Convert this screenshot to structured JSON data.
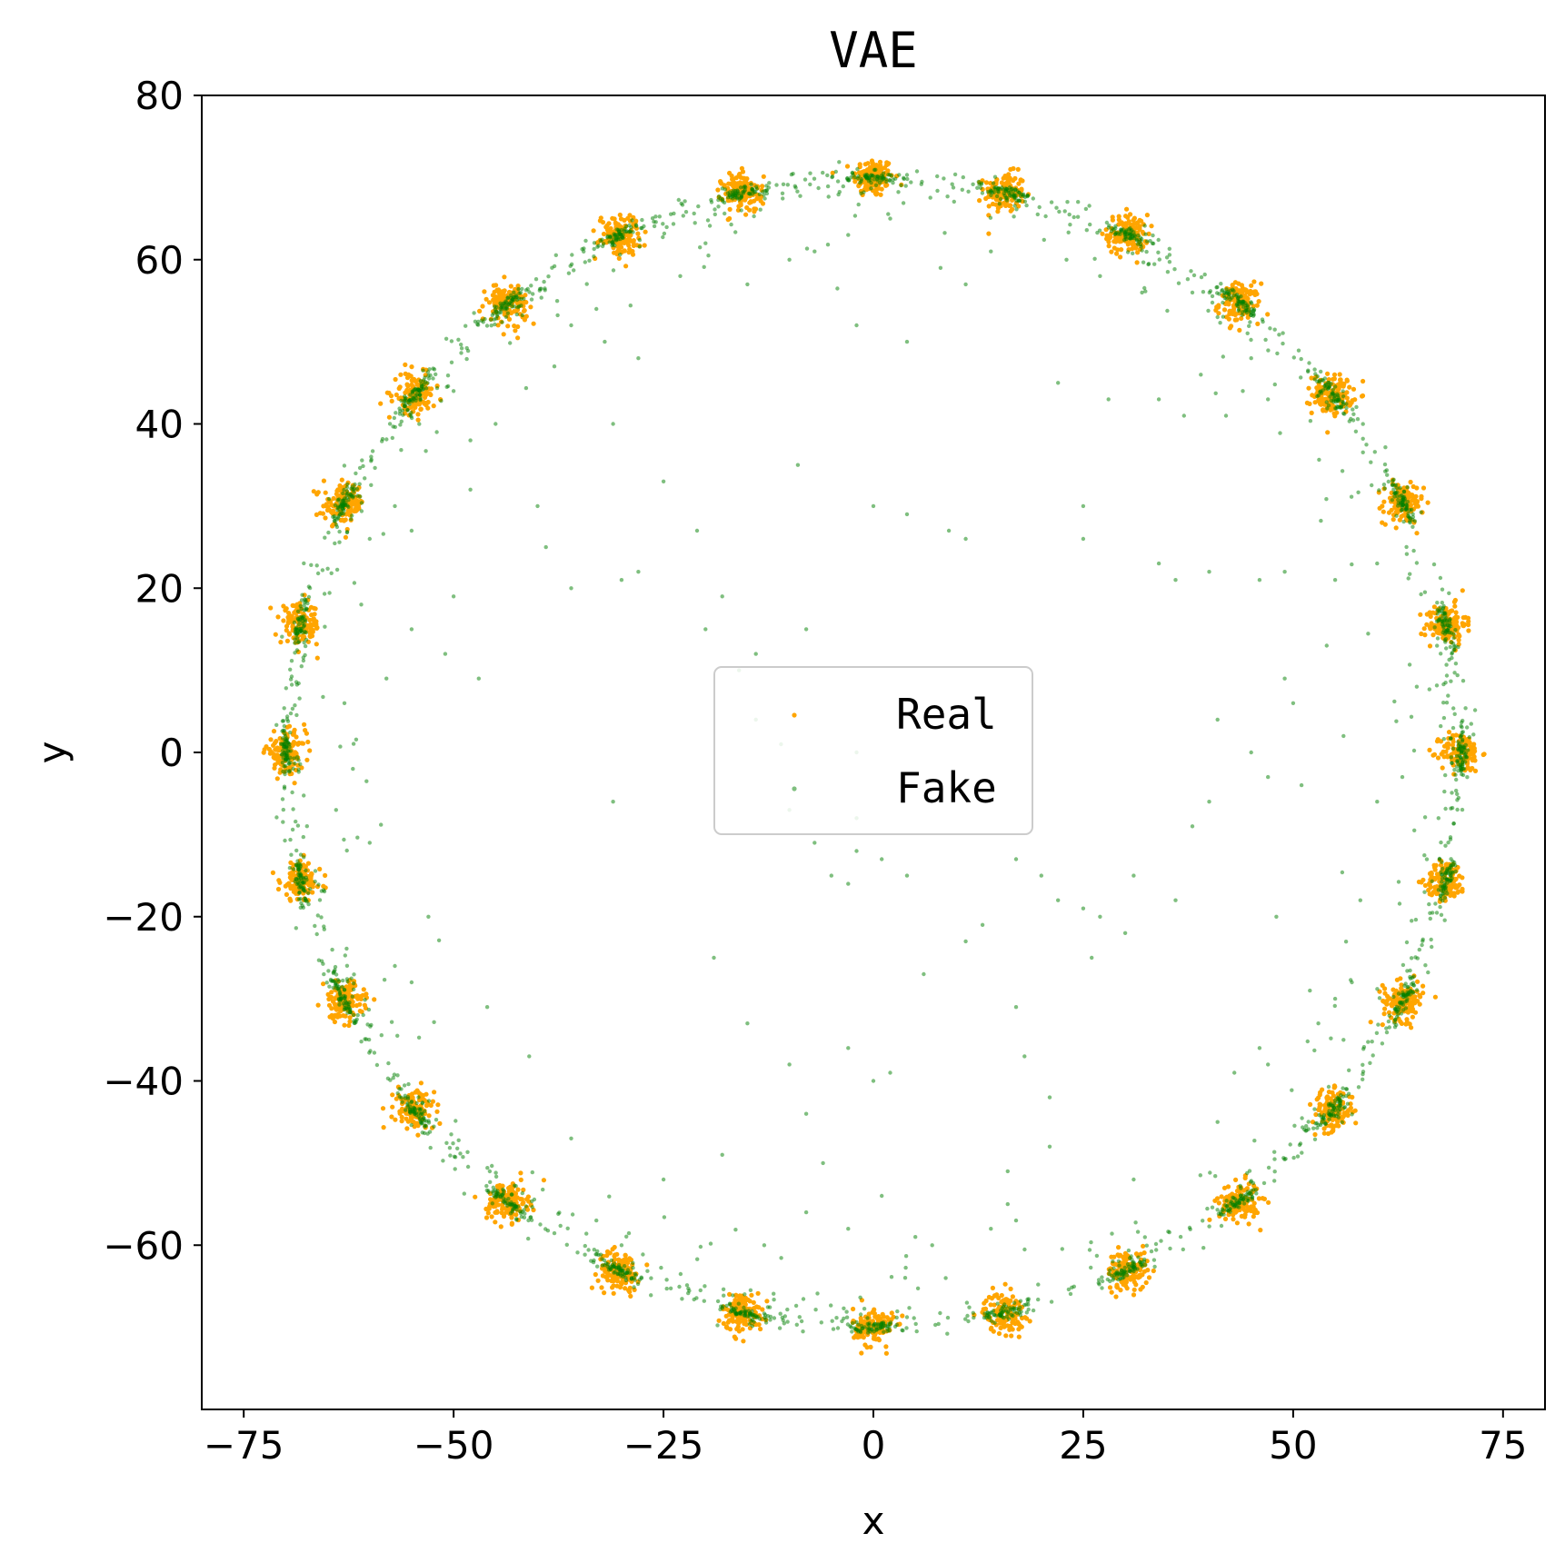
{
  "chart_data": {
    "type": "scatter",
    "title": "VAE",
    "xlabel": "x",
    "ylabel": "y",
    "xlim": [
      -80,
      80
    ],
    "ylim": [
      -80,
      80
    ],
    "xticks": [
      -75,
      -50,
      -25,
      0,
      25,
      50,
      75
    ],
    "xtick_labels": [
      "−75",
      "−50",
      "−25",
      "0",
      "25",
      "50",
      "75"
    ],
    "yticks": [
      -60,
      -40,
      -20,
      0,
      20,
      40,
      60,
      80
    ],
    "ytick_labels": [
      "−60",
      "−40",
      "−20",
      "0",
      "20",
      "40",
      "60",
      "80"
    ],
    "grid": false,
    "legend": {
      "placement": "center"
    },
    "series": [
      {
        "name": "Real",
        "color": "#ffa500",
        "clusters": [
          {
            "x": 0.0,
            "y": 70.0
          },
          {
            "x": 15.6,
            "y": 68.2
          },
          {
            "x": 30.3,
            "y": 63.1
          },
          {
            "x": 43.6,
            "y": 54.7
          },
          {
            "x": 54.7,
            "y": 43.6
          },
          {
            "x": 63.1,
            "y": 30.3
          },
          {
            "x": 68.2,
            "y": 15.6
          },
          {
            "x": 70.0,
            "y": 0.0
          },
          {
            "x": 68.2,
            "y": -15.6
          },
          {
            "x": 63.1,
            "y": -30.3
          },
          {
            "x": 54.7,
            "y": -43.6
          },
          {
            "x": 43.6,
            "y": -54.7
          },
          {
            "x": 30.3,
            "y": -63.1
          },
          {
            "x": 15.6,
            "y": -68.2
          },
          {
            "x": 0.0,
            "y": -70.0
          },
          {
            "x": -15.6,
            "y": -68.2
          },
          {
            "x": -30.3,
            "y": -63.1
          },
          {
            "x": -43.6,
            "y": -54.7
          },
          {
            "x": -54.7,
            "y": -43.6
          },
          {
            "x": -63.1,
            "y": -30.3
          },
          {
            "x": -68.2,
            "y": -15.6
          },
          {
            "x": -70.0,
            "y": 0.0
          },
          {
            "x": -68.2,
            "y": 15.6
          },
          {
            "x": -63.1,
            "y": 30.3
          },
          {
            "x": -54.7,
            "y": 43.6
          },
          {
            "x": -43.6,
            "y": 54.7
          },
          {
            "x": -30.3,
            "y": 63.1
          },
          {
            "x": -15.6,
            "y": 68.2
          }
        ],
        "cluster_std": 1.2
      },
      {
        "name": "Fake",
        "color": "#008000",
        "ring_radius": 69.5,
        "scattered_points": [
          [
            -2,
            52
          ],
          [
            4,
            50
          ],
          [
            -10,
            60
          ],
          [
            -15,
            57
          ],
          [
            -23,
            58
          ],
          [
            -28,
            48
          ],
          [
            -32,
            50
          ],
          [
            -42,
            56
          ],
          [
            -38,
            47
          ],
          [
            -45,
            40
          ],
          [
            -50,
            44
          ],
          [
            -48,
            32
          ],
          [
            -40,
            30
          ],
          [
            -39,
            25
          ],
          [
            -31,
            40
          ],
          [
            -25,
            33
          ],
          [
            -21,
            27
          ],
          [
            -30,
            21
          ],
          [
            -36,
            20
          ],
          [
            -50,
            19
          ],
          [
            -55,
            15
          ],
          [
            -58,
            9
          ],
          [
            -51,
            12
          ],
          [
            -47,
            9
          ],
          [
            -9,
            35
          ],
          [
            0,
            30
          ],
          [
            4,
            29
          ],
          [
            9,
            27
          ],
          [
            11,
            26
          ],
          [
            25,
            30
          ],
          [
            25,
            26
          ],
          [
            34,
            23
          ],
          [
            36,
            21
          ],
          [
            40,
            22
          ],
          [
            46,
            21
          ],
          [
            49,
            22
          ],
          [
            60,
            23
          ],
          [
            55,
            21
          ],
          [
            49,
            9
          ],
          [
            50,
            6
          ],
          [
            54,
            13
          ],
          [
            -28,
            22
          ],
          [
            -20,
            15
          ],
          [
            -18,
            19
          ],
          [
            -16,
            10
          ],
          [
            -14,
            4
          ],
          [
            -11,
            1
          ],
          [
            -10,
            -7
          ],
          [
            -7,
            -11
          ],
          [
            -5,
            -15
          ],
          [
            -3,
            -16
          ],
          [
            -2,
            -12
          ],
          [
            1,
            -13
          ],
          [
            4,
            -15
          ],
          [
            -2,
            -8
          ],
          [
            -14,
            12
          ],
          [
            -8,
            15
          ],
          [
            -2,
            0
          ],
          [
            -31,
            -6
          ],
          [
            -19,
            -25
          ],
          [
            -15,
            -33
          ],
          [
            -8,
            -44
          ],
          [
            -10,
            -38
          ],
          [
            -6,
            -50
          ],
          [
            -3,
            -36
          ],
          [
            0,
            -40
          ],
          [
            2,
            -39
          ],
          [
            6,
            -27
          ],
          [
            11,
            -23
          ],
          [
            13,
            -21
          ],
          [
            17,
            -31
          ],
          [
            17,
            -13
          ],
          [
            20,
            -15
          ],
          [
            22,
            -18
          ],
          [
            25,
            -19
          ],
          [
            27,
            -20
          ],
          [
            26,
            -25
          ],
          [
            30,
            -22
          ],
          [
            31,
            -15
          ],
          [
            36,
            -18
          ],
          [
            38,
            -9
          ],
          [
            40,
            -6
          ],
          [
            41,
            4
          ],
          [
            45,
            0
          ],
          [
            47,
            -3
          ],
          [
            51,
            -4
          ],
          [
            56,
            2
          ],
          [
            48,
            -20
          ],
          [
            52,
            -29
          ],
          [
            55,
            -30
          ],
          [
            57,
            -28
          ],
          [
            53,
            -33
          ],
          [
            56,
            -35
          ],
          [
            58,
            -18
          ],
          [
            60,
            -6
          ],
          [
            63,
            -3
          ],
          [
            18,
            -37
          ],
          [
            16,
            -51
          ],
          [
            17,
            -57
          ],
          [
            21,
            -48
          ],
          [
            21,
            -42
          ],
          [
            31,
            -52
          ],
          [
            41,
            -45
          ],
          [
            43,
            -39
          ],
          [
            46,
            -36
          ],
          [
            47,
            -38
          ],
          [
            -25,
            -52
          ],
          [
            -33,
            -57
          ],
          [
            -30,
            -60
          ],
          [
            -46,
            -31
          ],
          [
            -41,
            -37
          ],
          [
            -36,
            -47
          ],
          [
            -18,
            -49
          ],
          [
            -13,
            -60
          ],
          [
            -8,
            -56
          ],
          [
            -3,
            -58
          ],
          [
            1,
            -54
          ],
          [
            5,
            -59
          ],
          [
            7,
            -60
          ],
          [
            14,
            -58
          ],
          [
            16,
            -55
          ],
          [
            -55,
            -28
          ],
          [
            -57,
            -26
          ],
          [
            -53,
            -20
          ],
          [
            -60,
            -11
          ],
          [
            -64,
            -7
          ],
          [
            -62,
            -2
          ],
          [
            -63,
            6
          ],
          [
            -61,
            18
          ],
          [
            -60,
            26
          ],
          [
            -57,
            30
          ],
          [
            -55,
            27
          ],
          [
            -48,
            38
          ],
          [
            -52,
            39
          ],
          [
            -36,
            52
          ],
          [
            -33,
            54
          ],
          [
            -20,
            62
          ],
          [
            -7,
            61
          ],
          [
            -3,
            63
          ],
          [
            2,
            65
          ],
          [
            8,
            59
          ],
          [
            11,
            57
          ],
          [
            14,
            61
          ],
          [
            23,
            60
          ],
          [
            27,
            58
          ],
          [
            32,
            56
          ],
          [
            38,
            56
          ],
          [
            41,
            53
          ],
          [
            45,
            48
          ],
          [
            22,
            45
          ],
          [
            28,
            43
          ],
          [
            34,
            43
          ],
          [
            37,
            41
          ],
          [
            39,
            46
          ],
          [
            42,
            41
          ],
          [
            44,
            44
          ],
          [
            47,
            43
          ]
        ]
      }
    ]
  }
}
